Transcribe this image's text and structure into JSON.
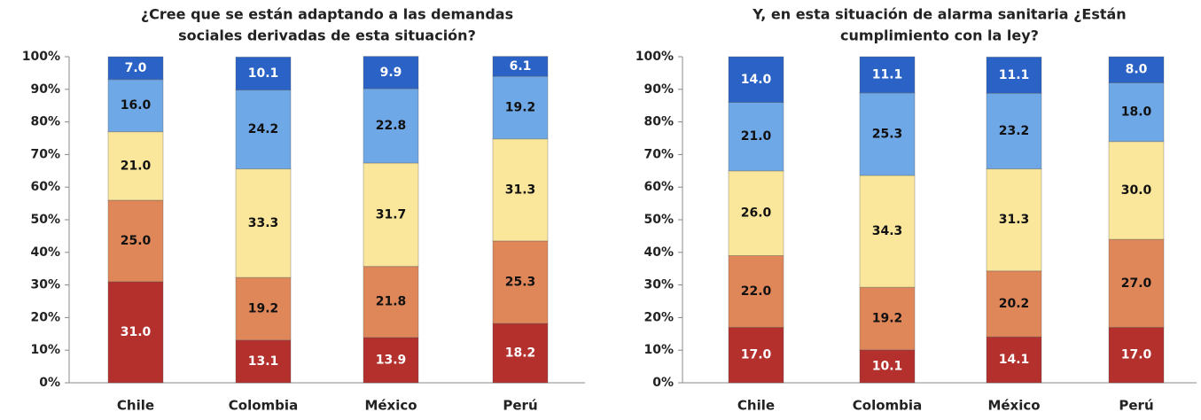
{
  "chart_data": [
    {
      "type": "stacked_bar",
      "title": [
        "¿Cree que se están adaptando a las demandas",
        "sociales derivadas de esta situación?"
      ],
      "categories": [
        "Chile",
        "Colombia",
        "México",
        "Perú"
      ],
      "series": [
        {
          "color": "#b3302d",
          "label_color": "#ffffff",
          "values": [
            31.0,
            13.1,
            13.9,
            18.2
          ],
          "value_labels": [
            "31.0",
            "13.1",
            "13.9",
            "18.2"
          ]
        },
        {
          "color": "#e0875a",
          "label_color": "#111111",
          "values": [
            25.0,
            19.2,
            21.8,
            25.3
          ],
          "value_labels": [
            "25.0",
            "19.2",
            "21.8",
            "25.3"
          ]
        },
        {
          "color": "#fbe79b",
          "label_color": "#111111",
          "values": [
            21.0,
            33.3,
            31.7,
            31.3
          ],
          "value_labels": [
            "21.0",
            "33.3",
            "31.7",
            "31.3"
          ]
        },
        {
          "color": "#6fa8e6",
          "label_color": "#111111",
          "values": [
            16.0,
            24.2,
            22.8,
            19.2
          ],
          "value_labels": [
            "16.0",
            "24.2",
            "22.8",
            "19.2"
          ]
        },
        {
          "color": "#2a62c6",
          "label_color": "#ffffff",
          "values": [
            7.0,
            10.1,
            9.9,
            6.1
          ],
          "value_labels": [
            "7.0",
            "10.1",
            "9.9",
            "6.1"
          ]
        }
      ],
      "ylim": [
        0,
        100
      ],
      "yticks": [
        {
          "value": 0,
          "label": "0%"
        },
        {
          "value": 10,
          "label": "10%"
        },
        {
          "value": 20,
          "label": "20%"
        },
        {
          "value": 30,
          "label": "30%"
        },
        {
          "value": 40,
          "label": "40%"
        },
        {
          "value": 50,
          "label": "50%"
        },
        {
          "value": 60,
          "label": "60%"
        },
        {
          "value": 70,
          "label": "70%"
        },
        {
          "value": 80,
          "label": "80%"
        },
        {
          "value": 90,
          "label": "90%"
        },
        {
          "value": 100,
          "label": "100%"
        }
      ],
      "grid": false
    },
    {
      "type": "stacked_bar",
      "title": [
        "Y, en esta situación de alarma sanitaria ¿Están",
        "cumplimiento con la ley?"
      ],
      "categories": [
        "Chile",
        "Colombia",
        "México",
        "Perú"
      ],
      "series": [
        {
          "color": "#b3302d",
          "label_color": "#ffffff",
          "values": [
            17.0,
            10.1,
            14.1,
            17.0
          ],
          "value_labels": [
            "17.0",
            "10.1",
            "14.1",
            "17.0"
          ]
        },
        {
          "color": "#e0875a",
          "label_color": "#111111",
          "values": [
            22.0,
            19.2,
            20.2,
            27.0
          ],
          "value_labels": [
            "22.0",
            "19.2",
            "20.2",
            "27.0"
          ]
        },
        {
          "color": "#fbe79b",
          "label_color": "#111111",
          "values": [
            26.0,
            34.3,
            31.3,
            30.0
          ],
          "value_labels": [
            "26.0",
            "34.3",
            "31.3",
            "30.0"
          ]
        },
        {
          "color": "#6fa8e6",
          "label_color": "#111111",
          "values": [
            21.0,
            25.3,
            23.2,
            18.0
          ],
          "value_labels": [
            "21.0",
            "25.3",
            "23.2",
            "18.0"
          ]
        },
        {
          "color": "#2a62c6",
          "label_color": "#ffffff",
          "values": [
            14.0,
            11.1,
            11.1,
            8.0
          ],
          "value_labels": [
            "14.0",
            "11.1",
            "11.1",
            "8.0"
          ]
        }
      ],
      "ylim": [
        0,
        100
      ],
      "yticks": [
        {
          "value": 0,
          "label": "0%"
        },
        {
          "value": 10,
          "label": "10%"
        },
        {
          "value": 20,
          "label": "20%"
        },
        {
          "value": 30,
          "label": "30%"
        },
        {
          "value": 40,
          "label": "40%"
        },
        {
          "value": 50,
          "label": "50%"
        },
        {
          "value": 60,
          "label": "60%"
        },
        {
          "value": 70,
          "label": "70%"
        },
        {
          "value": 80,
          "label": "80%"
        },
        {
          "value": 90,
          "label": "90%"
        },
        {
          "value": 100,
          "label": "100%"
        }
      ],
      "grid": false
    }
  ]
}
